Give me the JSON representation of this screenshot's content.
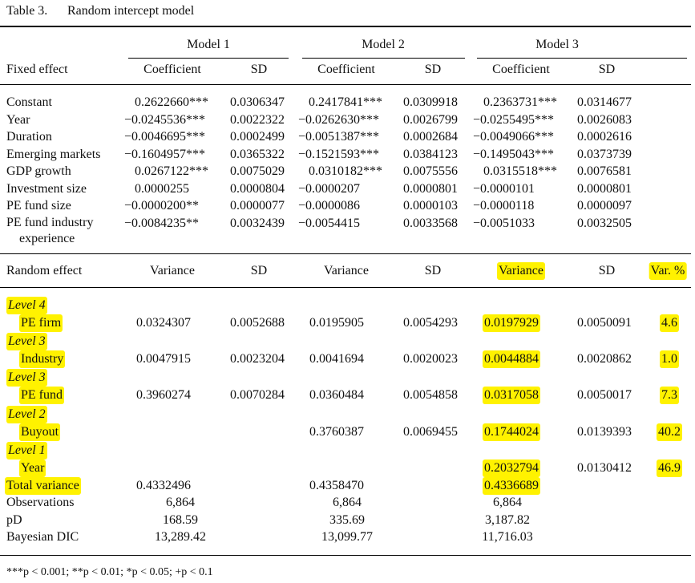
{
  "header": {
    "label": "Table 3.",
    "title": "Random intercept model"
  },
  "models": [
    "Model 1",
    "Model 2",
    "Model 3"
  ],
  "fixed_header": {
    "label": "Fixed effect",
    "columns": [
      "Coefficient",
      "SD",
      "Coefficient",
      "SD",
      "Coefficient",
      "SD"
    ]
  },
  "fixed_rows": [
    {
      "label": "Constant",
      "values": [
        "0.2622660***",
        "0.0306347",
        "0.2417841***",
        "0.0309918",
        "0.2363731***",
        "0.0314677"
      ]
    },
    {
      "label": "Year",
      "values": [
        "−0.0245536***",
        "0.0022322",
        "−0.0262630***",
        "0.0026799",
        "−0.0255495***",
        "0.0026083"
      ]
    },
    {
      "label": "Duration",
      "values": [
        "−0.0046695***",
        "0.0002499",
        "−0.0051387***",
        "0.0002684",
        "−0.0049066***",
        "0.0002616"
      ]
    },
    {
      "label": "Emerging markets",
      "values": [
        "−0.1604957***",
        "0.0365322",
        "−0.1521593***",
        "0.0384123",
        "−0.1495043***",
        "0.0373739"
      ]
    },
    {
      "label": "GDP growth",
      "values": [
        "0.0267122***",
        "0.0075029",
        "0.0310182***",
        "0.0075556",
        "0.0315518***",
        "0.0076581"
      ]
    },
    {
      "label": "Investment size",
      "values": [
        "0.0000255",
        "0.0000804",
        "−0.0000207",
        "0.0000801",
        "−0.0000101",
        "0.0000801"
      ]
    },
    {
      "label": "PE fund size",
      "values": [
        "−0.0000200**",
        "0.0000077",
        "−0.0000086",
        "0.0000103",
        "−0.0000118",
        "0.0000097"
      ]
    },
    {
      "label": "PE fund industry experience",
      "values": [
        "−0.0084235**",
        "0.0032439",
        "−0.0054415",
        "0.0033568",
        "−0.0051033",
        "0.0032505"
      ]
    }
  ],
  "random_header": {
    "label": "Random effect",
    "columns": [
      "Variance",
      "SD",
      "Variance",
      "SD",
      "Variance",
      "SD",
      "Var. %"
    ]
  },
  "random_rows": [
    {
      "level": "Level 4",
      "label": "PE firm",
      "values": [
        "0.0324307",
        "0.0052688",
        "0.0195905",
        "0.0054293",
        "0.0197929",
        "0.0050091",
        "4.6"
      ]
    },
    {
      "level": "Level 3",
      "label": "Industry",
      "values": [
        "0.0047915",
        "0.0023204",
        "0.0041694",
        "0.0020023",
        "0.0044884",
        "0.0020862",
        "1.0"
      ]
    },
    {
      "level": "Level 3",
      "label": "PE fund",
      "values": [
        "0.3960274",
        "0.0070284",
        "0.0360484",
        "0.0054858",
        "0.0317058",
        "0.0050017",
        "7.3"
      ]
    },
    {
      "level": "Level 2",
      "label": "Buyout",
      "values": [
        null,
        null,
        "0.3760387",
        "0.0069455",
        "0.1744024",
        "0.0139393",
        "40.2"
      ]
    },
    {
      "level": "Level 1",
      "label": "Year",
      "values": [
        null,
        null,
        null,
        null,
        "0.2032794",
        "0.0130412",
        "46.9"
      ]
    }
  ],
  "total_variance": {
    "label": "Total variance",
    "values": [
      "0.4332496",
      "0.4358470",
      "0.4336689"
    ]
  },
  "stats_rows": [
    {
      "label": "Observations",
      "values": [
        "6,864",
        "6,864",
        "6,864"
      ]
    },
    {
      "label": "pD",
      "values": [
        "168.59",
        "335.69",
        "3,187.82"
      ]
    },
    {
      "label": "Bayesian DIC",
      "values": [
        "13,289.42",
        "13,099.77",
        "11,716.03"
      ]
    }
  ],
  "footnote": "***p < 0.001; **p < 0.01; *p < 0.05; +p < 0.1"
}
